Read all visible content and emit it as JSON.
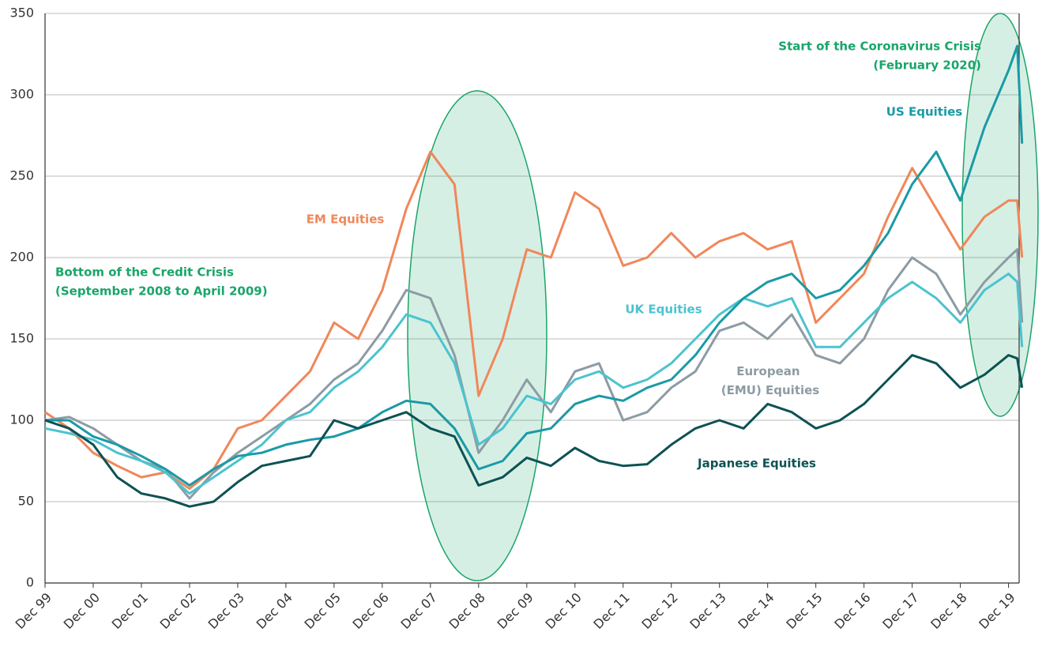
{
  "chart_data": {
    "type": "line",
    "x": [
      1999.92,
      2000.42,
      2000.92,
      2001.42,
      2001.92,
      2002.42,
      2002.92,
      2003.42,
      2003.92,
      2004.42,
      2004.92,
      2005.42,
      2005.92,
      2006.42,
      2006.92,
      2007.42,
      2007.92,
      2008.42,
      2008.92,
      2009.42,
      2009.92,
      2010.42,
      2010.92,
      2011.42,
      2011.92,
      2012.42,
      2012.92,
      2013.42,
      2013.92,
      2014.42,
      2014.92,
      2015.42,
      2015.92,
      2016.42,
      2016.92,
      2017.42,
      2017.92,
      2018.42,
      2018.92,
      2019.42,
      2019.92,
      2020.1,
      2020.2
    ],
    "series": [
      {
        "name": "EM Equities",
        "color": "#f0875a",
        "values": [
          105,
          95,
          80,
          72,
          65,
          68,
          58,
          70,
          95,
          100,
          115,
          130,
          160,
          150,
          180,
          230,
          265,
          245,
          115,
          150,
          205,
          200,
          240,
          230,
          195,
          200,
          215,
          200,
          210,
          215,
          205,
          210,
          160,
          175,
          190,
          225,
          255,
          230,
          205,
          225,
          235,
          235,
          200
        ]
      },
      {
        "name": "European (EMU) Equities",
        "color": "#8d9ba4",
        "values": [
          100,
          102,
          95,
          85,
          75,
          70,
          52,
          68,
          80,
          90,
          100,
          110,
          125,
          135,
          155,
          180,
          175,
          140,
          80,
          100,
          125,
          105,
          130,
          135,
          100,
          105,
          120,
          130,
          155,
          160,
          150,
          165,
          140,
          135,
          150,
          180,
          200,
          190,
          165,
          185,
          200,
          205,
          160
        ]
      },
      {
        "name": "UK Equities",
        "color": "#4cc3cf",
        "values": [
          95,
          92,
          88,
          80,
          75,
          68,
          55,
          65,
          75,
          85,
          100,
          105,
          120,
          130,
          145,
          165,
          160,
          135,
          85,
          95,
          115,
          110,
          125,
          130,
          120,
          125,
          135,
          150,
          165,
          175,
          170,
          175,
          145,
          145,
          160,
          175,
          185,
          175,
          160,
          180,
          190,
          185,
          145
        ]
      },
      {
        "name": "US Equities",
        "color": "#1a9aa6",
        "values": [
          100,
          100,
          90,
          85,
          78,
          70,
          60,
          70,
          78,
          80,
          85,
          88,
          90,
          95,
          105,
          112,
          110,
          95,
          70,
          75,
          92,
          95,
          110,
          115,
          112,
          120,
          125,
          140,
          160,
          175,
          185,
          190,
          175,
          180,
          195,
          215,
          245,
          265,
          235,
          280,
          315,
          330,
          270
        ]
      },
      {
        "name": "Japanese Equities",
        "color": "#0d5254",
        "values": [
          100,
          95,
          85,
          65,
          55,
          52,
          47,
          50,
          62,
          72,
          75,
          78,
          100,
          95,
          100,
          105,
          95,
          90,
          60,
          65,
          77,
          72,
          83,
          75,
          72,
          73,
          85,
          95,
          100,
          95,
          110,
          105,
          95,
          100,
          110,
          125,
          140,
          135,
          120,
          128,
          140,
          138,
          120
        ]
      }
    ],
    "xlim": [
      1999.92,
      2020.14
    ],
    "xticks": [
      {
        "value": 1999.92,
        "label": "Dec 99"
      },
      {
        "value": 2000.92,
        "label": "Dec 00"
      },
      {
        "value": 2001.92,
        "label": "Dec 01"
      },
      {
        "value": 2002.92,
        "label": "Dec 02"
      },
      {
        "value": 2003.92,
        "label": "Dec 03"
      },
      {
        "value": 2004.92,
        "label": "Dec 04"
      },
      {
        "value": 2005.92,
        "label": "Dec 05"
      },
      {
        "value": 2006.92,
        "label": "Dec 06"
      },
      {
        "value": 2007.92,
        "label": "Dec 07"
      },
      {
        "value": 2008.92,
        "label": "Dec 08"
      },
      {
        "value": 2009.92,
        "label": "Dec 09"
      },
      {
        "value": 2010.92,
        "label": "Dec 10"
      },
      {
        "value": 2011.92,
        "label": "Dec 11"
      },
      {
        "value": 2012.92,
        "label": "Dec 12"
      },
      {
        "value": 2013.92,
        "label": "Dec 13"
      },
      {
        "value": 2014.92,
        "label": "Dec 14"
      },
      {
        "value": 2015.92,
        "label": "Dec 15"
      },
      {
        "value": 2016.92,
        "label": "Dec 16"
      },
      {
        "value": 2017.92,
        "label": "Dec 17"
      },
      {
        "value": 2018.92,
        "label": "Dec 18"
      },
      {
        "value": 2019.92,
        "label": "Dec 19"
      }
    ],
    "ylim": [
      0,
      350
    ],
    "yticks": [
      0,
      50,
      100,
      150,
      200,
      250,
      300,
      350
    ],
    "grid": true,
    "annotations": [
      {
        "lines": [
          "Bottom of the Credit Crisis",
          "(September 2008 to April 2009)"
        ],
        "color": "#1aa56a"
      },
      {
        "lines": [
          "Start of the Coronavirus Crisis",
          "(February 2020)"
        ],
        "color": "#1aa56a"
      }
    ]
  }
}
